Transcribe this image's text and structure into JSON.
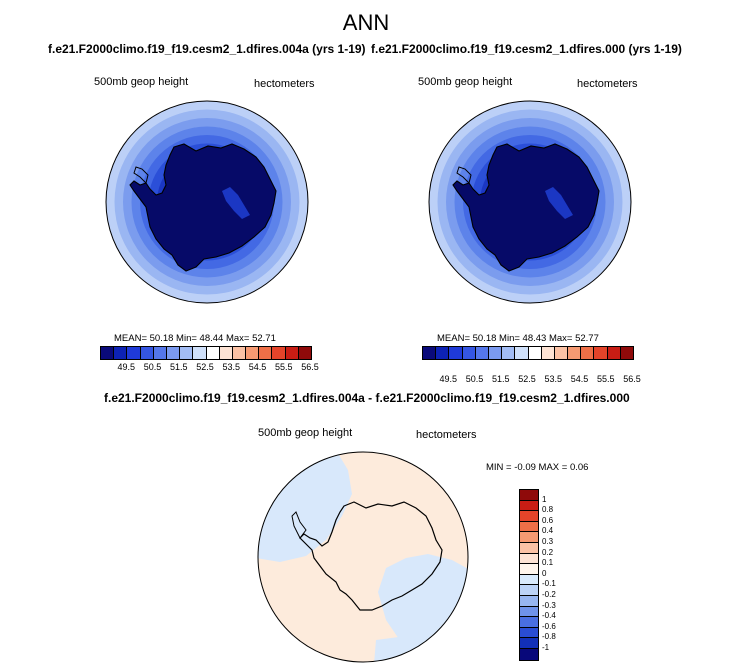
{
  "page": {
    "title": "ANN"
  },
  "panels": [
    {
      "case_title": "f.e21.F2000climo.f19_f19.cesm2_1.dfires.004a (yrs 1-19)",
      "variable": "500mb geop height",
      "units": "hectometers",
      "stats": "MEAN=  50.18  Min=  48.44  Max=  52.71"
    },
    {
      "case_title": "f.e21.F2000climo.f19_f19.cesm2_1.dfires.000 (yrs 1-19)",
      "variable": "500mb geop height",
      "units": "hectometers",
      "stats": "MEAN=  50.18  Min=  48.43  Max=  52.77"
    }
  ],
  "diff": {
    "title": "f.e21.F2000climo.f19_f19.cesm2_1.dfires.004a - f.e21.F2000climo.f19_f19.cesm2_1.dfires.000",
    "variable": "500mb geop height",
    "units": "hectometers",
    "stats": "MIN =  -0.09 MAX =   0.06"
  },
  "colorbar_main": {
    "colors": [
      "#0a0a7a",
      "#0d22b5",
      "#1f3ad8",
      "#3556e3",
      "#5577eb",
      "#7b9af0",
      "#a3bdf5",
      "#cfe0fa",
      "#ffffff",
      "#fde3d4",
      "#fbc2a5",
      "#f69a72",
      "#ef6f47",
      "#e4442a",
      "#c81d14",
      "#8f0a0a"
    ],
    "labels": [
      "49.5",
      "50.5",
      "51.5",
      "52.5",
      "53.5",
      "54.5",
      "55.5",
      "56.5"
    ]
  },
  "colorbar_diff": {
    "colors": [
      "#8f0a0a",
      "#c81d14",
      "#e4442a",
      "#ef6f47",
      "#f69a72",
      "#fbc2a5",
      "#fde3d4",
      "#fff5ec",
      "#d9eafc",
      "#bcd3f7",
      "#97b6f1",
      "#6f93ea",
      "#4a6fe1",
      "#2a4dd4",
      "#1230b8",
      "#08087a"
    ],
    "labels": [
      "1",
      "0.8",
      "0.6",
      "0.4",
      "0.3",
      "0.2",
      "0.1",
      "0",
      "-0.1",
      "-0.2",
      "-0.3",
      "-0.4",
      "-0.6",
      "-0.8",
      "-1"
    ]
  },
  "colors": {
    "ring_outer": "#bcd0f7",
    "ring_colors": [
      "#bcd0f7",
      "#9ab6f2",
      "#7b9cee",
      "#5d83ea",
      "#4369e4",
      "#2b4fd8",
      "#1b37c3",
      "#0e21a6",
      "#08128a",
      "#050a70"
    ],
    "diff_positive": "#fdebdc",
    "diff_negative": "#d8e8fb"
  }
}
